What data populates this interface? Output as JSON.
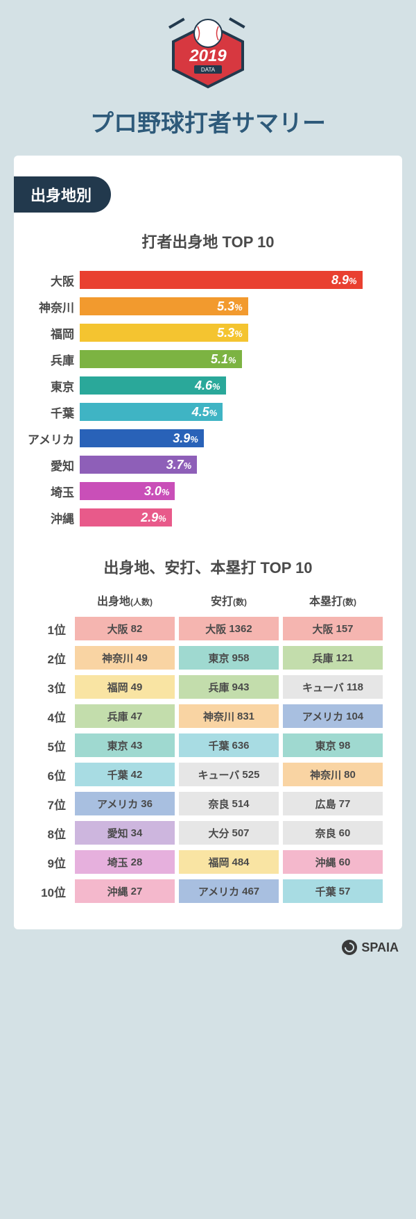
{
  "badge": {
    "year": "2019",
    "sub": "DATA"
  },
  "title": "プロ野球打者サマリー",
  "section": "出身地別",
  "chart": {
    "title": "打者出身地 TOP 10",
    "max": 9.5,
    "rows": [
      {
        "label": "大阪",
        "value": 8.9,
        "color": "#e94030"
      },
      {
        "label": "神奈川",
        "value": 5.3,
        "color": "#f29a2e"
      },
      {
        "label": "福岡",
        "value": 5.3,
        "color": "#f4c430"
      },
      {
        "label": "兵庫",
        "value": 5.1,
        "color": "#7cb342"
      },
      {
        "label": "東京",
        "value": 4.6,
        "color": "#2aa89a"
      },
      {
        "label": "千葉",
        "value": 4.5,
        "color": "#3fb4c4"
      },
      {
        "label": "アメリカ",
        "value": 3.9,
        "color": "#2962b8"
      },
      {
        "label": "愛知",
        "value": 3.7,
        "color": "#8e5fb8"
      },
      {
        "label": "埼玉",
        "value": 3.0,
        "color": "#c94fb8"
      },
      {
        "label": "沖縄",
        "value": 2.9,
        "color": "#e85a8a"
      }
    ]
  },
  "table": {
    "title": "出身地、安打、本塁打 TOP 10",
    "columns": [
      {
        "name": "出身地",
        "unit": "(人数)"
      },
      {
        "name": "安打",
        "unit": "(数)"
      },
      {
        "name": "本塁打",
        "unit": "(数)"
      }
    ],
    "rows": [
      {
        "rank": "1位",
        "cells": [
          {
            "t": "大阪",
            "n": "82",
            "c": "#f5b5b0"
          },
          {
            "t": "大阪",
            "n": "1362",
            "c": "#f5b5b0"
          },
          {
            "t": "大阪",
            "n": "157",
            "c": "#f5b5b0"
          }
        ]
      },
      {
        "rank": "2位",
        "cells": [
          {
            "t": "神奈川",
            "n": "49",
            "c": "#f9d4a3"
          },
          {
            "t": "東京",
            "n": "958",
            "c": "#9fd9d0"
          },
          {
            "t": "兵庫",
            "n": "121",
            "c": "#c3ddac"
          }
        ]
      },
      {
        "rank": "3位",
        "cells": [
          {
            "t": "福岡",
            "n": "49",
            "c": "#f9e4a3"
          },
          {
            "t": "兵庫",
            "n": "943",
            "c": "#c3ddac"
          },
          {
            "t": "キューバ",
            "n": "118",
            "c": "#e6e6e6"
          }
        ]
      },
      {
        "rank": "4位",
        "cells": [
          {
            "t": "兵庫",
            "n": "47",
            "c": "#c3ddac"
          },
          {
            "t": "神奈川",
            "n": "831",
            "c": "#f9d4a3"
          },
          {
            "t": "アメリカ",
            "n": "104",
            "c": "#a8bfe0"
          }
        ]
      },
      {
        "rank": "5位",
        "cells": [
          {
            "t": "東京",
            "n": "43",
            "c": "#9fd9d0"
          },
          {
            "t": "千葉",
            "n": "636",
            "c": "#a8dce3"
          },
          {
            "t": "東京",
            "n": "98",
            "c": "#9fd9d0"
          }
        ]
      },
      {
        "rank": "6位",
        "cells": [
          {
            "t": "千葉",
            "n": "42",
            "c": "#a8dce3"
          },
          {
            "t": "キューバ",
            "n": "525",
            "c": "#e6e6e6"
          },
          {
            "t": "神奈川",
            "n": "80",
            "c": "#f9d4a3"
          }
        ]
      },
      {
        "rank": "7位",
        "cells": [
          {
            "t": "アメリカ",
            "n": "36",
            "c": "#a8bfe0"
          },
          {
            "t": "奈良",
            "n": "514",
            "c": "#e6e6e6"
          },
          {
            "t": "広島",
            "n": "77",
            "c": "#e6e6e6"
          }
        ]
      },
      {
        "rank": "8位",
        "cells": [
          {
            "t": "愛知",
            "n": "34",
            "c": "#cdb6de"
          },
          {
            "t": "大分",
            "n": "507",
            "c": "#e6e6e6"
          },
          {
            "t": "奈良",
            "n": "60",
            "c": "#e6e6e6"
          }
        ]
      },
      {
        "rank": "9位",
        "cells": [
          {
            "t": "埼玉",
            "n": "28",
            "c": "#e6b0dd"
          },
          {
            "t": "福岡",
            "n": "484",
            "c": "#f9e4a3"
          },
          {
            "t": "沖縄",
            "n": "60",
            "c": "#f4b8cc"
          }
        ]
      },
      {
        "rank": "10位",
        "cells": [
          {
            "t": "沖縄",
            "n": "27",
            "c": "#f4b8cc"
          },
          {
            "t": "アメリカ",
            "n": "467",
            "c": "#a8bfe0"
          },
          {
            "t": "千葉",
            "n": "57",
            "c": "#a8dce3"
          }
        ]
      }
    ]
  },
  "footer": "SPAIA"
}
